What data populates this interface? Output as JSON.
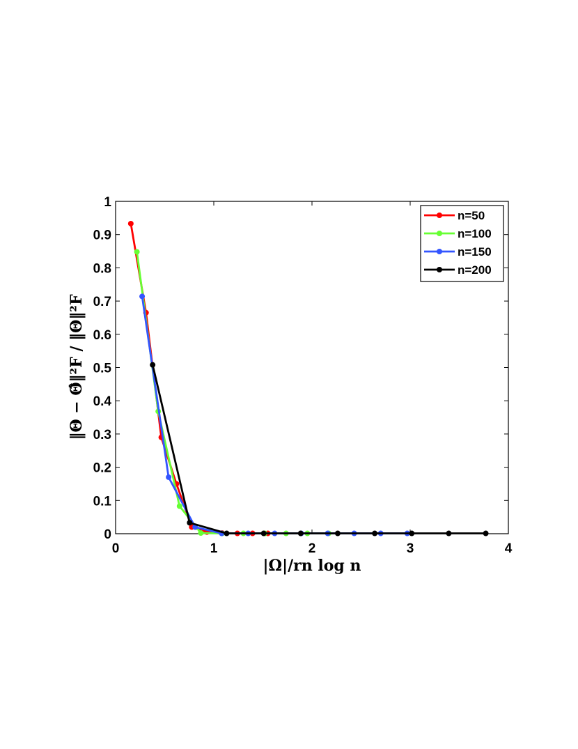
{
  "chart_data": {
    "type": "line",
    "xlabel": "|Ω|/rn log n",
    "ylabel": "‖Θ − Θ̂‖²F / ‖Θ‖²F",
    "xlim": [
      0,
      4
    ],
    "ylim": [
      0,
      1
    ],
    "xticks": [
      0,
      1,
      2,
      3,
      4
    ],
    "yticks": [
      0,
      0.1,
      0.2,
      0.3,
      0.4,
      0.5,
      0.6,
      0.7,
      0.8,
      0.9,
      1
    ],
    "xtick_labels": [
      "0",
      "1",
      "2",
      "3",
      "4"
    ],
    "ytick_labels": [
      "0",
      "0.1",
      "0.2",
      "0.3",
      "0.4",
      "0.5",
      "0.6",
      "0.7",
      "0.8",
      "0.9",
      "1"
    ],
    "grid": false,
    "legend_position": "top-right",
    "series": [
      {
        "name": "n=50",
        "color": "#ff0000",
        "x": [
          0.155,
          0.31,
          0.465,
          0.62,
          0.775,
          0.93,
          1.085,
          1.24,
          1.395,
          1.55
        ],
        "y": [
          0.933,
          0.665,
          0.29,
          0.15,
          0.02,
          0.005,
          0.002,
          0.001,
          0.001,
          0.001
        ]
      },
      {
        "name": "n=100",
        "color": "#66ff33",
        "x": [
          0.217,
          0.434,
          0.651,
          0.868,
          1.085,
          1.302,
          1.519,
          1.736,
          1.953,
          2.17
        ],
        "y": [
          0.848,
          0.368,
          0.083,
          0.002,
          0.001,
          0.001,
          0.001,
          0.001,
          0.001,
          0.001
        ]
      },
      {
        "name": "n=150",
        "color": "#3355ff",
        "x": [
          0.27,
          0.54,
          0.81,
          1.08,
          1.35,
          1.62,
          1.89,
          2.16,
          2.43,
          2.7,
          2.97
        ],
        "y": [
          0.714,
          0.17,
          0.02,
          0.001,
          0.001,
          0.001,
          0.001,
          0.001,
          0.001,
          0.001,
          0.001
        ]
      },
      {
        "name": "n=200",
        "color": "#000000",
        "x": [
          0.377,
          0.754,
          1.131,
          1.508,
          1.885,
          2.262,
          2.639,
          3.016,
          3.393,
          3.77
        ],
        "y": [
          0.508,
          0.033,
          0.001,
          0.001,
          0.001,
          0.001,
          0.001,
          0.001,
          0.001,
          0.001
        ]
      }
    ]
  }
}
